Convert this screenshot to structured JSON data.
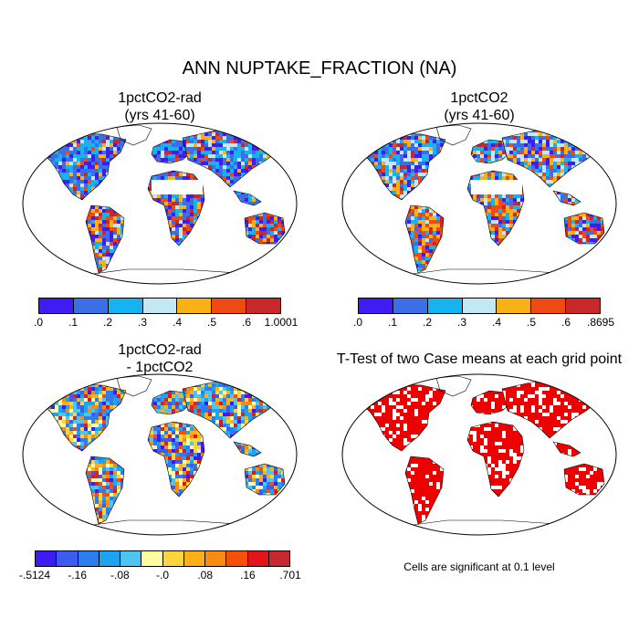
{
  "title": "ANN NUPTAKE_FRACTION (NA)",
  "panels": [
    {
      "line1": "1pctCO2-rad",
      "line2": "(yrs 41-60)",
      "scheme": "case"
    },
    {
      "line1": "1pctCO2",
      "line2": "(yrs 41-60)",
      "scheme": "case"
    },
    {
      "line1": "1pctCO2-rad",
      "line2": "- 1pctCO2",
      "scheme": "diff"
    },
    {
      "line1": "T-Test of two Case means at each grid point",
      "line2": "",
      "scheme": "ttest"
    }
  ],
  "colorbars": [
    {
      "colors": [
        "#3e1cf2",
        "#3c6ee6",
        "#16b3f0",
        "#c2e8f5",
        "#f9b117",
        "#f04a14",
        "#c82828"
      ],
      "labels": [
        ".0",
        ".1",
        ".2",
        ".3",
        ".4",
        ".5",
        ".6",
        "1.0001"
      ]
    },
    {
      "colors": [
        "#3e1cf2",
        "#3c6ee6",
        "#16b3f0",
        "#c2e8f5",
        "#f9b117",
        "#f04a14",
        "#c82828"
      ],
      "labels": [
        ".0",
        ".1",
        ".2",
        ".3",
        ".4",
        ".5",
        ".6",
        ".8695"
      ]
    },
    {
      "colors": [
        "#3c1cf2",
        "#3c5cf0",
        "#2c7ef0",
        "#1ca4f0",
        "#4cc6f0",
        "#fcfca0",
        "#fcd43c",
        "#fcb018",
        "#f88c10",
        "#f4500c",
        "#e4141c",
        "#c82830"
      ],
      "labels": [
        "-.5124",
        "-.16",
        "-.08",
        "-.0",
        ".08",
        ".16",
        ".701"
      ]
    }
  ],
  "significance_color": "#ee0000",
  "significance_note": "Cells are significant at 0.1 level"
}
